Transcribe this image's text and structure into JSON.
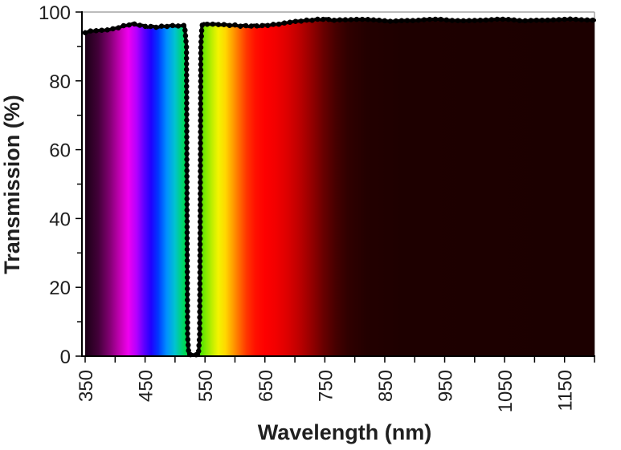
{
  "chart_data": {
    "type": "area",
    "title": "",
    "xlabel": "Wavelength (nm)",
    "ylabel": "Transmission (%)",
    "xlim": [
      350,
      1200
    ],
    "ylim": [
      0,
      100
    ],
    "x_major_ticks": [
      350,
      450,
      550,
      650,
      750,
      850,
      950,
      1050,
      1150
    ],
    "x_minor_step": 50,
    "y_major_ticks": [
      0,
      20,
      40,
      60,
      80,
      100
    ],
    "y_minor_step": 10,
    "grid": false,
    "legend": false,
    "x_tick_rotation_deg": -90,
    "notch_center_nm": 532,
    "series": [
      {
        "name": "Transmission",
        "points": [
          [
            350,
            94.0
          ],
          [
            358,
            94.3
          ],
          [
            366,
            94.5
          ],
          [
            374,
            94.6
          ],
          [
            382,
            94.7
          ],
          [
            390,
            94.9
          ],
          [
            398,
            95.2
          ],
          [
            406,
            95.6
          ],
          [
            414,
            96.0
          ],
          [
            422,
            96.4
          ],
          [
            430,
            96.6
          ],
          [
            438,
            96.4
          ],
          [
            446,
            96.0
          ],
          [
            454,
            95.8
          ],
          [
            462,
            95.7
          ],
          [
            470,
            95.6
          ],
          [
            478,
            95.7
          ],
          [
            486,
            95.8
          ],
          [
            494,
            95.9
          ],
          [
            502,
            95.9
          ],
          [
            508,
            96.0
          ],
          [
            513,
            96.0
          ],
          [
            516,
            95.9
          ],
          [
            519,
            90
          ],
          [
            520,
            40
          ],
          [
            521,
            6
          ],
          [
            523,
            0.5
          ],
          [
            527,
            0.4
          ],
          [
            531,
            0.4
          ],
          [
            535,
            0.4
          ],
          [
            539,
            0.5
          ],
          [
            541,
            6
          ],
          [
            542,
            40
          ],
          [
            543,
            90
          ],
          [
            545,
            96.0
          ],
          [
            548,
            96.4
          ],
          [
            553,
            96.5
          ],
          [
            560,
            96.5
          ],
          [
            568,
            96.4
          ],
          [
            576,
            96.3
          ],
          [
            584,
            96.2
          ],
          [
            592,
            96.1
          ],
          [
            600,
            96.0
          ],
          [
            608,
            95.9
          ],
          [
            616,
            95.9
          ],
          [
            624,
            95.9
          ],
          [
            632,
            96.0
          ],
          [
            640,
            96.0
          ],
          [
            648,
            96.1
          ],
          [
            656,
            96.3
          ],
          [
            664,
            96.4
          ],
          [
            672,
            96.6
          ],
          [
            680,
            96.8
          ],
          [
            688,
            97.0
          ],
          [
            696,
            97.2
          ],
          [
            704,
            97.3
          ],
          [
            712,
            97.4
          ],
          [
            720,
            97.5
          ],
          [
            728,
            97.6
          ],
          [
            736,
            97.7
          ],
          [
            744,
            97.8
          ],
          [
            752,
            97.8
          ],
          [
            762,
            97.8
          ],
          [
            775,
            97.8
          ],
          [
            790,
            97.7
          ],
          [
            805,
            97.7
          ],
          [
            820,
            97.6
          ],
          [
            840,
            97.6
          ],
          [
            860,
            97.5
          ],
          [
            880,
            97.6
          ],
          [
            900,
            97.6
          ],
          [
            920,
            97.7
          ],
          [
            940,
            97.7
          ],
          [
            960,
            97.7
          ],
          [
            980,
            97.6
          ],
          [
            1000,
            97.6
          ],
          [
            1020,
            97.7
          ],
          [
            1040,
            97.7
          ],
          [
            1060,
            97.7
          ],
          [
            1080,
            97.6
          ],
          [
            1100,
            97.7
          ],
          [
            1120,
            97.7
          ],
          [
            1140,
            97.7
          ],
          [
            1160,
            97.7
          ],
          [
            1180,
            97.8
          ],
          [
            1200,
            97.8
          ]
        ]
      }
    ],
    "spectrum_gradient": [
      {
        "nm": 350,
        "color": "#1b0016"
      },
      {
        "nm": 372,
        "color": "#430039"
      },
      {
        "nm": 392,
        "color": "#860076"
      },
      {
        "nm": 408,
        "color": "#c400b4"
      },
      {
        "nm": 422,
        "color": "#ef00ef"
      },
      {
        "nm": 436,
        "color": "#b200ff"
      },
      {
        "nm": 448,
        "color": "#6000ff"
      },
      {
        "nm": 460,
        "color": "#2000ff"
      },
      {
        "nm": 472,
        "color": "#0038ff"
      },
      {
        "nm": 486,
        "color": "#0090ff"
      },
      {
        "nm": 500,
        "color": "#00c4cf"
      },
      {
        "nm": 512,
        "color": "#00d470"
      },
      {
        "nm": 525,
        "color": "#00dc28"
      },
      {
        "nm": 538,
        "color": "#2ae000"
      },
      {
        "nm": 550,
        "color": "#7ce800"
      },
      {
        "nm": 562,
        "color": "#c0ee00"
      },
      {
        "nm": 572,
        "color": "#f2f400"
      },
      {
        "nm": 584,
        "color": "#ffd800"
      },
      {
        "nm": 596,
        "color": "#ffa000"
      },
      {
        "nm": 608,
        "color": "#ff6800"
      },
      {
        "nm": 620,
        "color": "#ff3400"
      },
      {
        "nm": 634,
        "color": "#ff1000"
      },
      {
        "nm": 650,
        "color": "#fe0000"
      },
      {
        "nm": 668,
        "color": "#f20000"
      },
      {
        "nm": 688,
        "color": "#dc0000"
      },
      {
        "nm": 708,
        "color": "#bc0000"
      },
      {
        "nm": 728,
        "color": "#940000"
      },
      {
        "nm": 748,
        "color": "#680000"
      },
      {
        "nm": 768,
        "color": "#460000"
      },
      {
        "nm": 788,
        "color": "#300000"
      },
      {
        "nm": 820,
        "color": "#230000"
      },
      {
        "nm": 880,
        "color": "#1e0000"
      },
      {
        "nm": 1000,
        "color": "#1d0000"
      },
      {
        "nm": 1200,
        "color": "#1c0000"
      }
    ],
    "colors": {
      "curve": "#000000",
      "axis": "#000000",
      "plot_border": "#a6a6a6",
      "text": "#1f1f1f",
      "background": "#ffffff"
    }
  }
}
